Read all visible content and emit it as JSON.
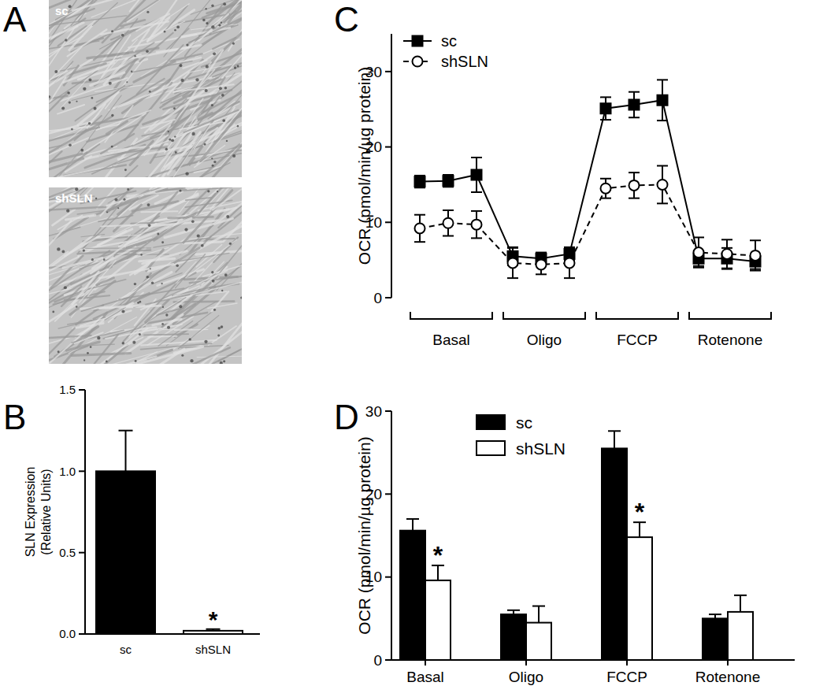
{
  "images": {
    "panel": "A",
    "labels": [
      "sc",
      "shSLN"
    ]
  },
  "chart_data": [
    {
      "panel": "B",
      "type": "bar",
      "categories": [
        "sc",
        "shSLN"
      ],
      "values": [
        1.0,
        0.02
      ],
      "errors": [
        0.25,
        0.01
      ],
      "colors": [
        "#000000",
        "#ffffff"
      ],
      "ylabel": [
        "SLN Expression",
        "(Relative Units)"
      ],
      "ylim": [
        0,
        1.5
      ],
      "yticks": [
        {
          "value": 0,
          "label": "0.0"
        },
        {
          "value": 0.5,
          "label": "0.5"
        },
        {
          "value": 1,
          "label": "1.0"
        },
        {
          "value": 1.5,
          "label": "1.5"
        }
      ],
      "annotations": [
        {
          "text": "*",
          "category": "shSLN"
        }
      ]
    },
    {
      "panel": "C",
      "type": "line",
      "categories": [
        null,
        null,
        null,
        null,
        null,
        null,
        null,
        null,
        null,
        null,
        null,
        null
      ],
      "category_groups": [
        "Basal",
        "Oligo",
        "FCCP",
        "Rotenone"
      ],
      "ylabel": "OCR (pmol/min/µg protein)",
      "ylim": [
        0,
        35
      ],
      "yticks": [
        0,
        10,
        20,
        30
      ],
      "legend": "top-left",
      "series": [
        {
          "name": "sc",
          "color": "#000000",
          "marker": "square",
          "line_style": "solid",
          "values": [
            15.4,
            15.5,
            16.3,
            5.5,
            5.2,
            5.8,
            25.1,
            25.6,
            26.2,
            5.2,
            5.2,
            4.8
          ],
          "errors": [
            0.8,
            0.8,
            2.3,
            1.2,
            0.8,
            0.9,
            1.5,
            1.7,
            2.7,
            1.0,
            1.4,
            1.0
          ]
        },
        {
          "name": "shSLN",
          "color": "#ffffff",
          "marker": "circle",
          "line_style": "dashed",
          "values": [
            9.2,
            9.9,
            9.7,
            4.6,
            4.4,
            4.6,
            14.5,
            14.9,
            15.0,
            6.0,
            5.8,
            5.6
          ],
          "errors": [
            1.8,
            1.7,
            1.8,
            2.0,
            1.3,
            2.0,
            1.3,
            1.7,
            2.5,
            2.0,
            1.9,
            2.0
          ]
        }
      ]
    },
    {
      "panel": "D",
      "type": "bar",
      "categories": [
        "Basal",
        "Oligo",
        "FCCP",
        "Rotenone"
      ],
      "ylabel": "OCR (pmol/min/µg protein)",
      "ylim": [
        0,
        30
      ],
      "yticks": [
        0,
        10,
        20,
        30
      ],
      "legend": "top-left",
      "series": [
        {
          "name": "sc",
          "color": "#000000",
          "values": [
            15.6,
            5.5,
            25.5,
            5.0
          ],
          "errors": [
            1.4,
            0.5,
            2.1,
            0.5
          ]
        },
        {
          "name": "shSLN",
          "color": "#ffffff",
          "values": [
            9.6,
            4.5,
            14.8,
            5.8
          ],
          "errors": [
            1.8,
            2.0,
            1.8,
            2.0
          ]
        }
      ],
      "annotations": [
        {
          "text": "*",
          "category": "Basal",
          "series": "shSLN"
        },
        {
          "text": "*",
          "category": "FCCP",
          "series": "shSLN"
        }
      ]
    }
  ]
}
